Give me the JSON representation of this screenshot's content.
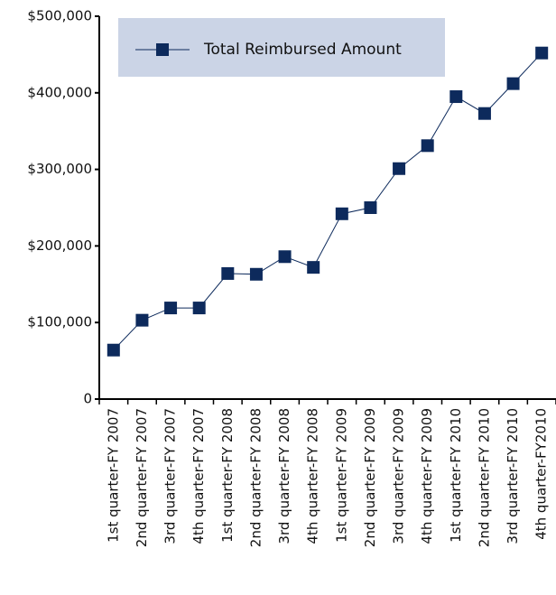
{
  "chart_data": {
    "type": "line",
    "categories": [
      "1st quarter-FY 2007",
      "2nd quarter-FY 2007",
      "3rd quarter-FY 2007",
      "4th quarter-FY 2007",
      "1st quarter-FY 2008",
      "2nd quarter-FY 2008",
      "3rd quarter-FY 2008",
      "4th quarter-FY 2008",
      "1st quarter-FY 2009",
      "2nd quarter-FY 2009",
      "3rd quarter-FY 2009",
      "4th quarter-FY 2009",
      "1st quarter-FY 2010",
      "2nd quarter-FY 2010",
      "3rd quarter-FY 2010",
      "4th quarter-FY2010"
    ],
    "series": [
      {
        "name": "Total Reimbursed Amount",
        "color": "#0d2a5c",
        "values": [
          64000,
          103000,
          119000,
          119000,
          164000,
          163000,
          186000,
          172000,
          242000,
          250000,
          301000,
          331000,
          395000,
          373000,
          412000,
          452000
        ]
      }
    ],
    "ylim": [
      0,
      500000
    ],
    "yticks": [
      0,
      {
        "value": 100000,
        "label": "$100,000"
      },
      {
        "value": 200000,
        "label": "$200,000"
      },
      {
        "value": 300000,
        "label": "$300,000"
      },
      {
        "value": 400000,
        "label": "$400,000"
      },
      {
        "value": 500000,
        "label": "$500,000"
      }
    ],
    "grid": false,
    "legend": "top-left"
  }
}
